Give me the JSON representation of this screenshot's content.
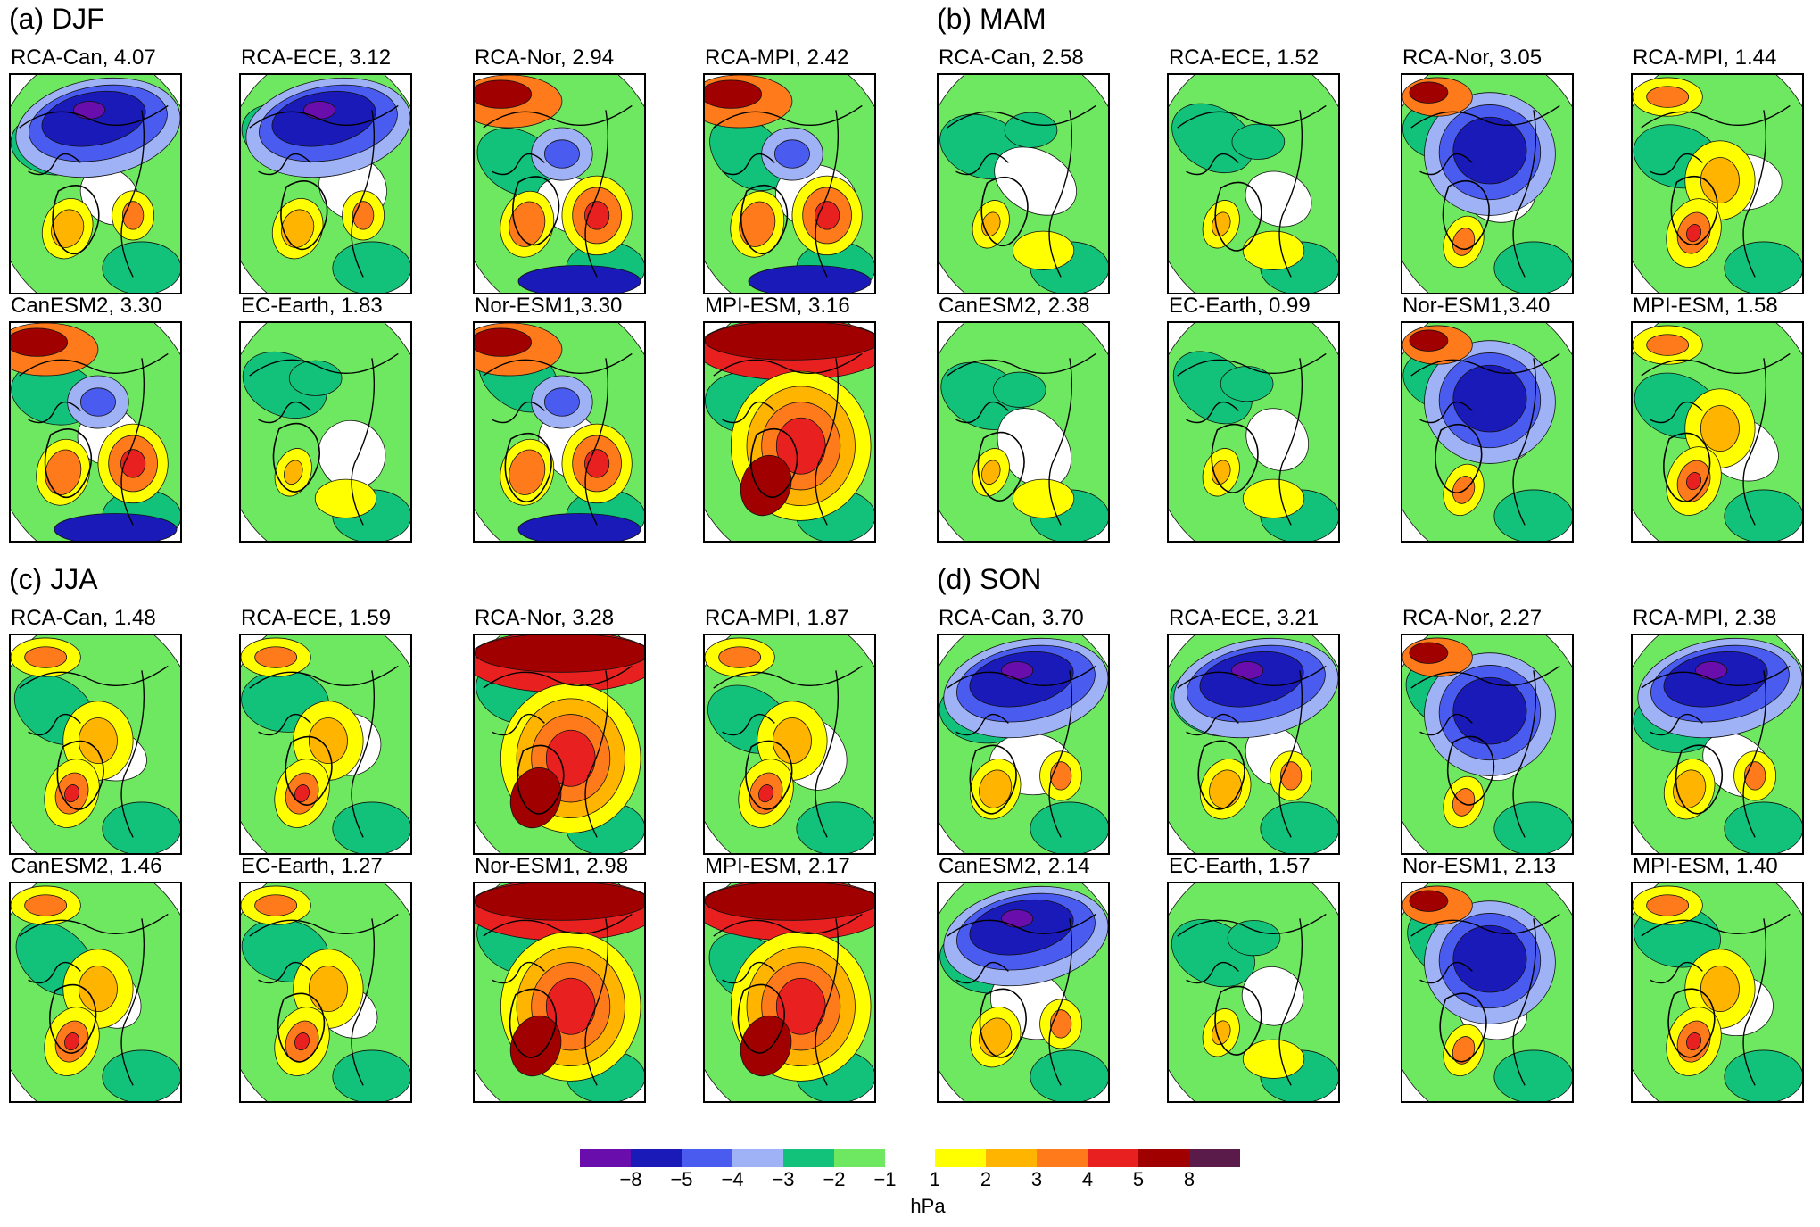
{
  "chart_data": {
    "type": "map-panels",
    "unit": "hPa",
    "legend_title": "hPa",
    "seasons": [
      {
        "title": "(a) DJF",
        "panels": [
          {
            "label": "RCA-Can, 4.07",
            "pattern": "neg-north"
          },
          {
            "label": "RCA-ECE, 3.12",
            "pattern": "neg-north"
          },
          {
            "label": "RCA-Nor, 2.94",
            "pattern": "mixed"
          },
          {
            "label": "RCA-MPI, 2.42",
            "pattern": "mixed"
          },
          {
            "label": "CanESM2, 3.30",
            "pattern": "mixed"
          },
          {
            "label": "EC-Earth, 1.83",
            "pattern": "weak"
          },
          {
            "label": "Nor-ESM1,3.30",
            "pattern": "mixed"
          },
          {
            "label": "MPI-ESM, 3.16",
            "pattern": "pos-strong"
          }
        ]
      },
      {
        "title": "(b) MAM",
        "panels": [
          {
            "label": "RCA-Can, 2.58",
            "pattern": "weak"
          },
          {
            "label": "RCA-ECE, 1.52",
            "pattern": "weak"
          },
          {
            "label": "RCA-Nor, 3.05",
            "pattern": "neg-center"
          },
          {
            "label": "RCA-MPI, 1.44",
            "pattern": "pos-weak"
          },
          {
            "label": "CanESM2, 2.38",
            "pattern": "weak"
          },
          {
            "label": "EC-Earth, 0.99",
            "pattern": "weak"
          },
          {
            "label": "Nor-ESM1,3.40",
            "pattern": "neg-center"
          },
          {
            "label": "MPI-ESM, 1.58",
            "pattern": "pos-weak"
          }
        ]
      },
      {
        "title": "(c) JJA",
        "panels": [
          {
            "label": "RCA-Can, 1.48",
            "pattern": "pos-weak"
          },
          {
            "label": "RCA-ECE, 1.59",
            "pattern": "pos-weak"
          },
          {
            "label": "RCA-Nor, 3.28",
            "pattern": "pos-strong"
          },
          {
            "label": "RCA-MPI, 1.87",
            "pattern": "pos-weak"
          },
          {
            "label": "CanESM2, 1.46",
            "pattern": "pos-weak"
          },
          {
            "label": "EC-Earth, 1.27",
            "pattern": "pos-weak"
          },
          {
            "label": "Nor-ESM1, 2.98",
            "pattern": "pos-strong"
          },
          {
            "label": "MPI-ESM, 2.17",
            "pattern": "pos-strong"
          }
        ]
      },
      {
        "title": "(d) SON",
        "panels": [
          {
            "label": "RCA-Can, 3.70",
            "pattern": "neg-north"
          },
          {
            "label": "RCA-ECE, 3.21",
            "pattern": "neg-north"
          },
          {
            "label": "RCA-Nor, 2.27",
            "pattern": "neg-center"
          },
          {
            "label": "RCA-MPI, 2.38",
            "pattern": "neg-north"
          },
          {
            "label": "CanESM2, 2.14",
            "pattern": "neg-north"
          },
          {
            "label": "EC-Earth, 1.57",
            "pattern": "weak"
          },
          {
            "label": "Nor-ESM1, 2.13",
            "pattern": "neg-center"
          },
          {
            "label": "MPI-ESM, 1.40",
            "pattern": "pos-weak"
          }
        ]
      }
    ],
    "colorbar": {
      "ticks": [
        "−8",
        "−5",
        "−4",
        "−3",
        "−2",
        "−1",
        "1",
        "2",
        "3",
        "4",
        "5",
        "8"
      ],
      "negative_colors": [
        "#6a0dad",
        "#1a1ab8",
        "#4a5cf0",
        "#9fb2f5",
        "#12c27a",
        "#6ee860"
      ],
      "positive_colors": [
        "#ffff00",
        "#ffb400",
        "#ff7a1a",
        "#e82020",
        "#a00000",
        "#5a1a4a"
      ]
    }
  }
}
